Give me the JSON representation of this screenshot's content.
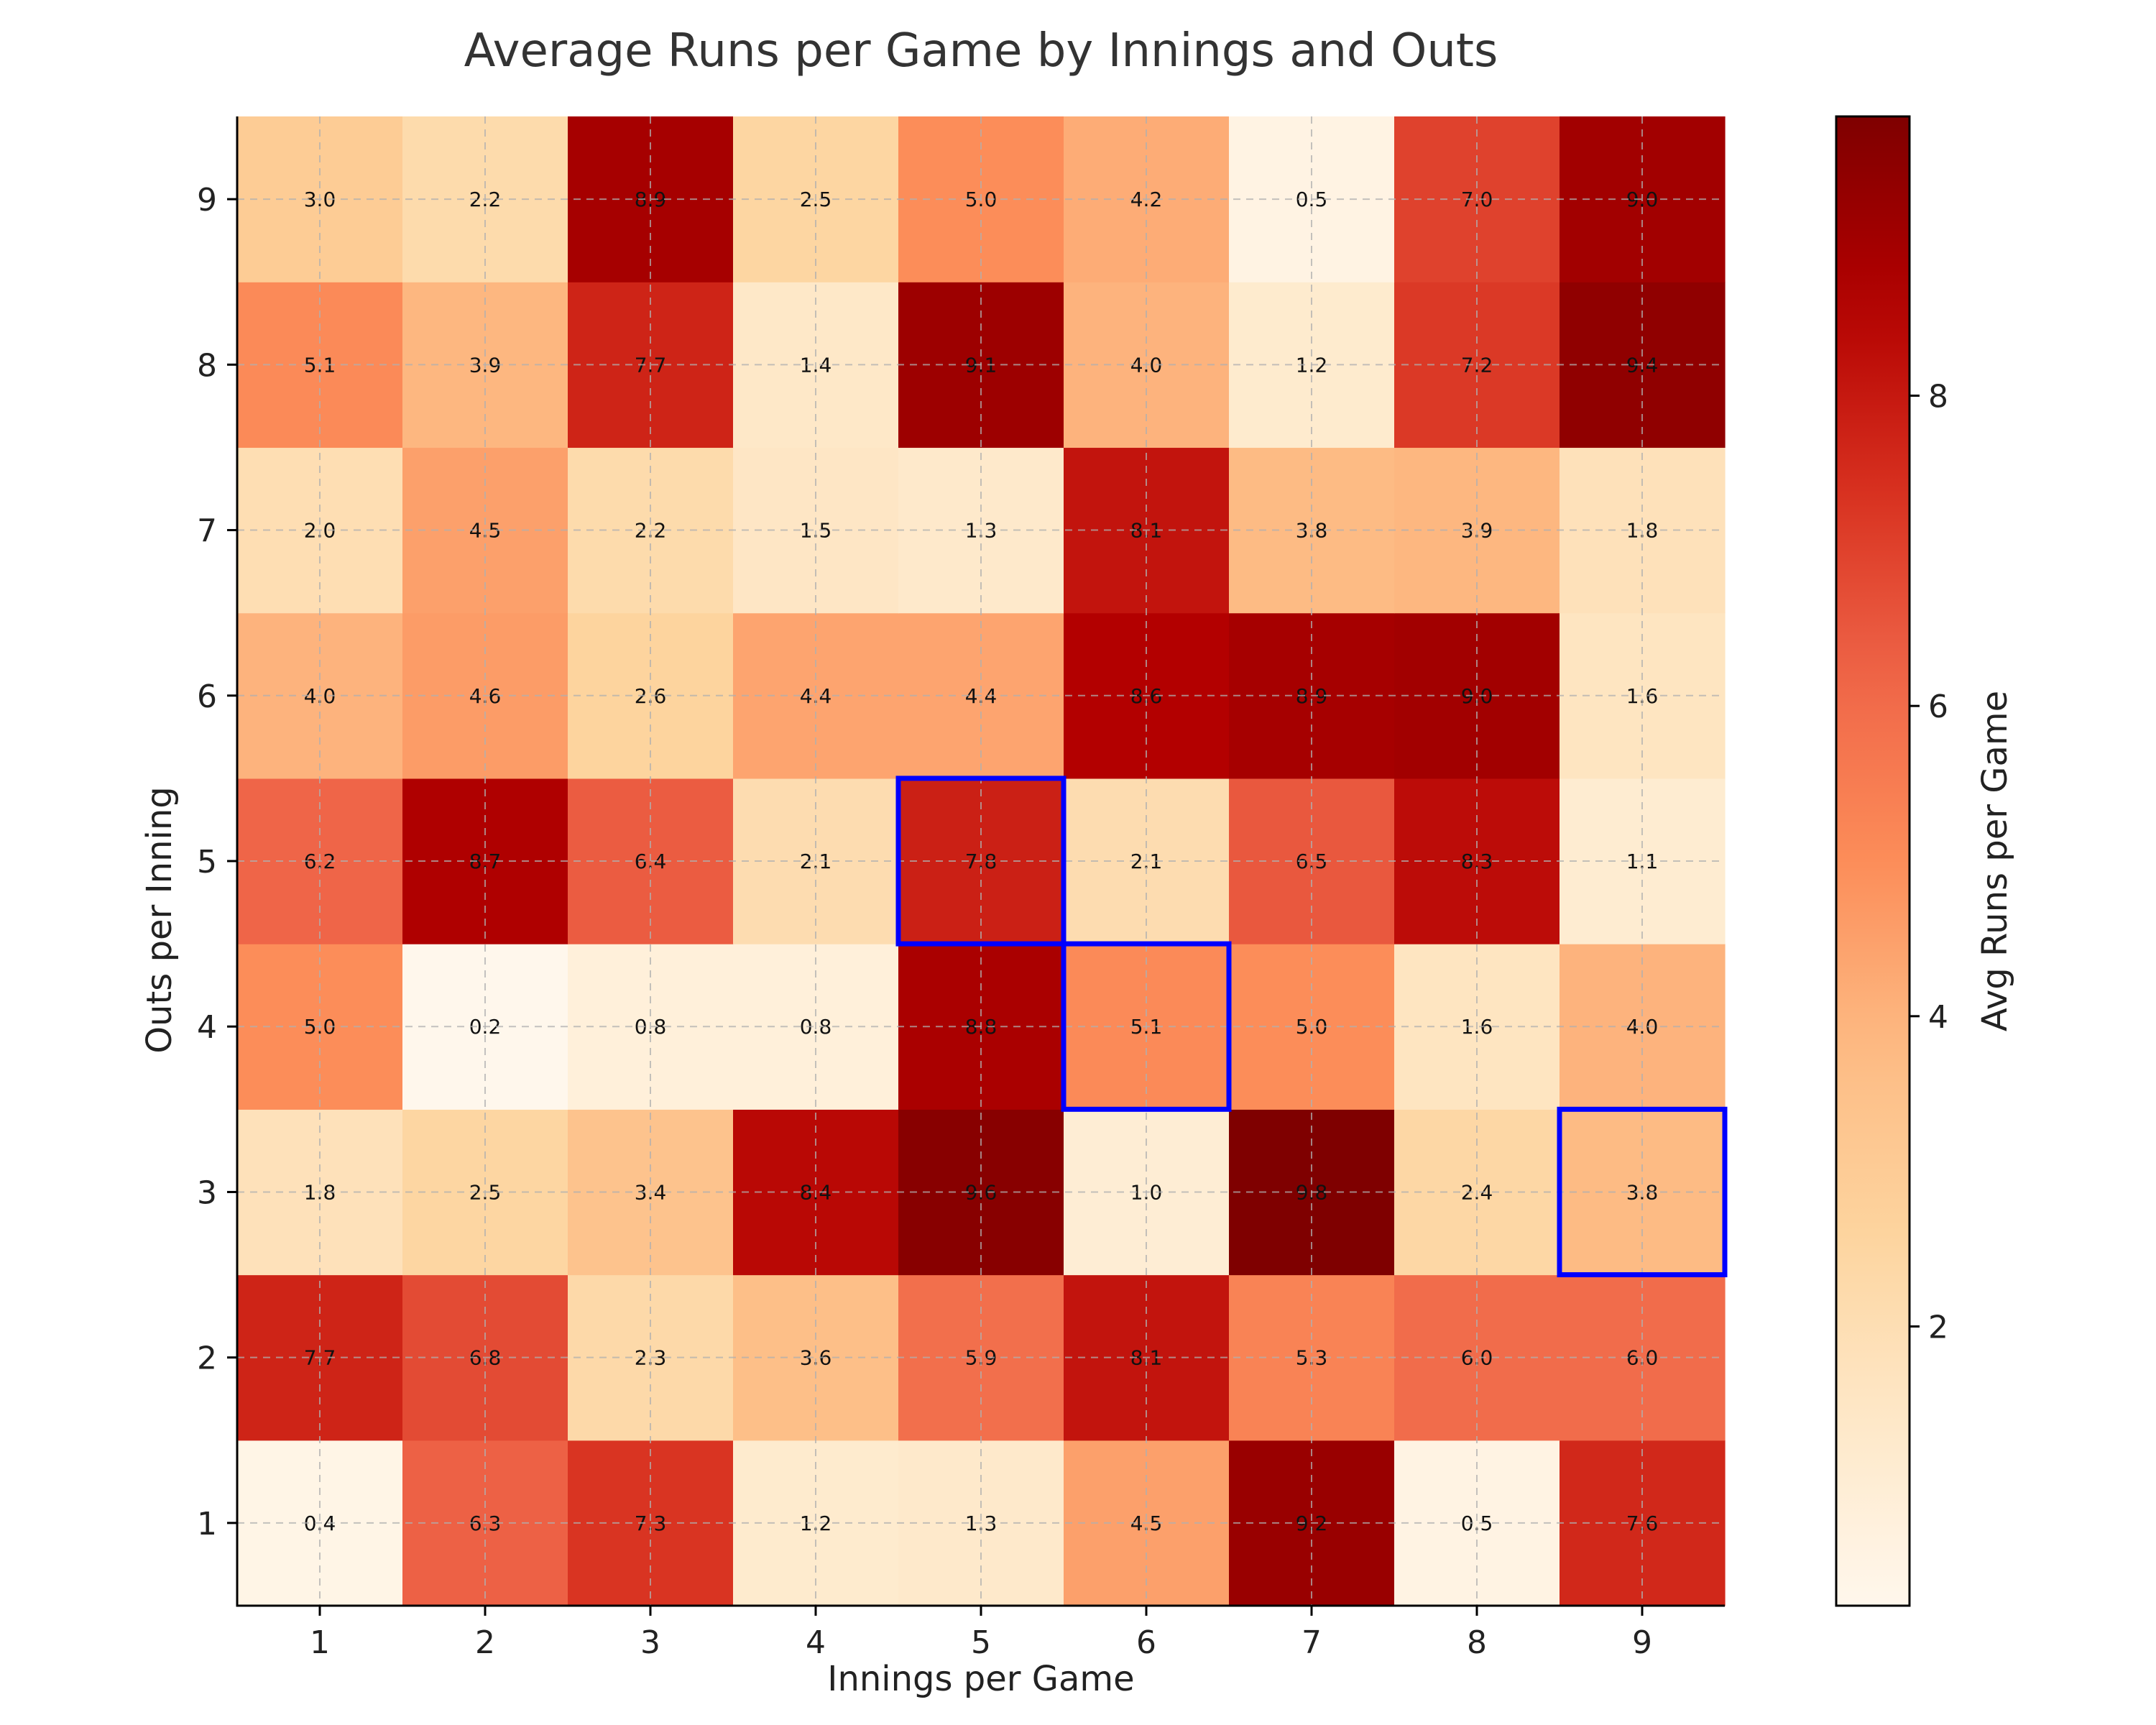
{
  "chart_data": {
    "type": "heatmap",
    "title": "Average Runs per Game by Innings and Outs",
    "xlabel": "Innings per Game",
    "ylabel": "Outs per Inning",
    "x_categories": [
      "1",
      "2",
      "3",
      "4",
      "5",
      "6",
      "7",
      "8",
      "9"
    ],
    "y_categories": [
      "1",
      "2",
      "3",
      "4",
      "5",
      "6",
      "7",
      "8",
      "9"
    ],
    "values_by_outs": [
      [
        0.4,
        6.3,
        7.3,
        1.2,
        1.3,
        4.5,
        9.2,
        0.5,
        7.6
      ],
      [
        7.7,
        6.8,
        2.3,
        3.6,
        5.9,
        8.1,
        5.3,
        6.0,
        6.0
      ],
      [
        1.8,
        2.5,
        3.4,
        8.4,
        9.6,
        1.0,
        9.8,
        2.4,
        3.8
      ],
      [
        5.0,
        0.2,
        0.8,
        0.8,
        8.8,
        5.1,
        5.0,
        1.6,
        4.0
      ],
      [
        6.2,
        8.7,
        6.4,
        2.1,
        7.8,
        2.1,
        6.5,
        8.3,
        1.1
      ],
      [
        4.0,
        4.6,
        2.6,
        4.4,
        4.4,
        8.6,
        8.9,
        9.0,
        1.6
      ],
      [
        2.0,
        4.5,
        2.2,
        1.5,
        1.3,
        8.1,
        3.8,
        3.9,
        1.8
      ],
      [
        5.1,
        3.9,
        7.7,
        1.4,
        9.1,
        4.0,
        1.2,
        7.2,
        9.4
      ],
      [
        3.0,
        2.2,
        8.9,
        2.5,
        5.0,
        4.2,
        0.5,
        7.0,
        9.0
      ]
    ],
    "highlighted_cells": [
      {
        "innings": 5,
        "outs": 5
      },
      {
        "innings": 6,
        "outs": 4
      },
      {
        "innings": 9,
        "outs": 3
      }
    ],
    "highlight_color": "#0000ff",
    "colormap": "OrRd",
    "color_range": [
      0.2,
      9.8
    ],
    "colorbar": {
      "label": "Avg Runs per Game",
      "ticks": [
        2,
        4,
        6,
        8
      ]
    },
    "grid": true
  }
}
